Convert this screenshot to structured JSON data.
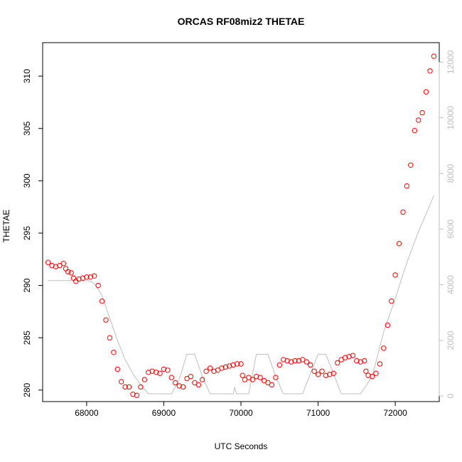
{
  "chart_data": {
    "type": "scatter",
    "title": "ORCAS RF08miz2 THETAE",
    "xlabel": "UTC Seconds",
    "ylabel": "THETAE",
    "x_ticks": [
      68000,
      69000,
      70000,
      71000,
      72000
    ],
    "y_ticks": [
      280,
      285,
      290,
      295,
      300,
      305,
      310
    ],
    "y2_ticks": [
      0,
      2000,
      4000,
      6000,
      8000,
      10000,
      12000
    ],
    "xlim": [
      67430,
      72570
    ],
    "ylim": [
      278.9,
      313.2
    ],
    "y2lim": [
      -200,
      12700
    ],
    "grid": false,
    "series": [
      {
        "color": "#ff0000",
        "marker": "open-circle",
        "axis": "left",
        "points": [
          [
            67500,
            292.2
          ],
          [
            67550,
            291.9
          ],
          [
            67600,
            291.8
          ],
          [
            67650,
            291.9
          ],
          [
            67700,
            292.1
          ],
          [
            67730,
            291.6
          ],
          [
            67760,
            291.3
          ],
          [
            67800,
            291.2
          ],
          [
            67830,
            290.7
          ],
          [
            67860,
            290.4
          ],
          [
            67900,
            290.6
          ],
          [
            67950,
            290.7
          ],
          [
            68000,
            290.8
          ],
          [
            68050,
            290.8
          ],
          [
            68100,
            290.9
          ],
          [
            68150,
            290.0
          ],
          [
            68200,
            288.5
          ],
          [
            68250,
            286.7
          ],
          [
            68300,
            285.0
          ],
          [
            68350,
            283.6
          ],
          [
            68400,
            282.0
          ],
          [
            68450,
            280.8
          ],
          [
            68500,
            280.3
          ],
          [
            68550,
            280.3
          ],
          [
            68600,
            279.6
          ],
          [
            68650,
            279.5
          ],
          [
            68700,
            280.3
          ],
          [
            68750,
            281.0
          ],
          [
            68800,
            281.7
          ],
          [
            68850,
            281.8
          ],
          [
            68900,
            281.7
          ],
          [
            68950,
            281.6
          ],
          [
            69000,
            282.0
          ],
          [
            69050,
            281.9
          ],
          [
            69100,
            281.2
          ],
          [
            69150,
            280.7
          ],
          [
            69200,
            280.4
          ],
          [
            69250,
            280.3
          ],
          [
            69300,
            281.1
          ],
          [
            69350,
            281.3
          ],
          [
            69400,
            280.7
          ],
          [
            69450,
            280.5
          ],
          [
            69500,
            281.0
          ],
          [
            69550,
            281.8
          ],
          [
            69600,
            282.1
          ],
          [
            69650,
            281.8
          ],
          [
            69700,
            281.9
          ],
          [
            69750,
            282.1
          ],
          [
            69800,
            282.2
          ],
          [
            69850,
            282.3
          ],
          [
            69900,
            282.4
          ],
          [
            69950,
            282.5
          ],
          [
            70000,
            282.5
          ],
          [
            70020,
            281.4
          ],
          [
            70050,
            281.0
          ],
          [
            70100,
            281.2
          ],
          [
            70150,
            281.0
          ],
          [
            70200,
            281.3
          ],
          [
            70250,
            281.2
          ],
          [
            70300,
            280.9
          ],
          [
            70350,
            280.7
          ],
          [
            70400,
            280.5
          ],
          [
            70450,
            281.2
          ],
          [
            70500,
            282.4
          ],
          [
            70550,
            282.9
          ],
          [
            70600,
            282.8
          ],
          [
            70650,
            282.7
          ],
          [
            70700,
            282.8
          ],
          [
            70750,
            282.8
          ],
          [
            70800,
            282.9
          ],
          [
            70850,
            282.7
          ],
          [
            70900,
            282.4
          ],
          [
            70950,
            281.8
          ],
          [
            71000,
            281.5
          ],
          [
            71050,
            281.8
          ],
          [
            71100,
            281.4
          ],
          [
            71150,
            281.5
          ],
          [
            71200,
            281.6
          ],
          [
            71250,
            282.6
          ],
          [
            71300,
            282.9
          ],
          [
            71350,
            283.1
          ],
          [
            71400,
            283.2
          ],
          [
            71450,
            283.3
          ],
          [
            71500,
            282.8
          ],
          [
            71550,
            282.7
          ],
          [
            71600,
            282.8
          ],
          [
            71620,
            281.8
          ],
          [
            71650,
            281.4
          ],
          [
            71700,
            281.3
          ],
          [
            71750,
            281.6
          ],
          [
            71800,
            282.5
          ],
          [
            71850,
            284.0
          ],
          [
            71900,
            286.2
          ],
          [
            71950,
            288.5
          ],
          [
            72000,
            291.0
          ],
          [
            72050,
            294.0
          ],
          [
            72100,
            297.0
          ],
          [
            72150,
            299.5
          ],
          [
            72200,
            301.5
          ],
          [
            72250,
            304.8
          ],
          [
            72300,
            305.8
          ],
          [
            72350,
            306.5
          ],
          [
            72400,
            308.5
          ],
          [
            72450,
            310.5
          ],
          [
            72500,
            311.9
          ]
        ]
      },
      {
        "color": "#bebebe",
        "marker": "line",
        "axis": "right",
        "points": [
          [
            67500,
            4150
          ],
          [
            68000,
            4150
          ],
          [
            68050,
            4120
          ],
          [
            68100,
            4050
          ],
          [
            68200,
            3600
          ],
          [
            68300,
            2800
          ],
          [
            68400,
            2000
          ],
          [
            68500,
            1300
          ],
          [
            68600,
            800
          ],
          [
            68700,
            400
          ],
          [
            68800,
            80
          ],
          [
            69000,
            80
          ],
          [
            69100,
            80
          ],
          [
            69200,
            600
          ],
          [
            69300,
            1500
          ],
          [
            69400,
            1500
          ],
          [
            69500,
            700
          ],
          [
            69600,
            80
          ],
          [
            69900,
            80
          ],
          [
            69920,
            320
          ],
          [
            69940,
            80
          ],
          [
            70100,
            80
          ],
          [
            70200,
            1500
          ],
          [
            70350,
            1500
          ],
          [
            70450,
            700
          ],
          [
            70550,
            80
          ],
          [
            70800,
            80
          ],
          [
            70900,
            800
          ],
          [
            71000,
            1500
          ],
          [
            71100,
            1500
          ],
          [
            71200,
            800
          ],
          [
            71300,
            80
          ],
          [
            71550,
            80
          ],
          [
            71700,
            700
          ],
          [
            71850,
            2300
          ],
          [
            72000,
            3500
          ],
          [
            72150,
            4800
          ],
          [
            72300,
            5900
          ],
          [
            72500,
            7200
          ]
        ]
      }
    ]
  }
}
